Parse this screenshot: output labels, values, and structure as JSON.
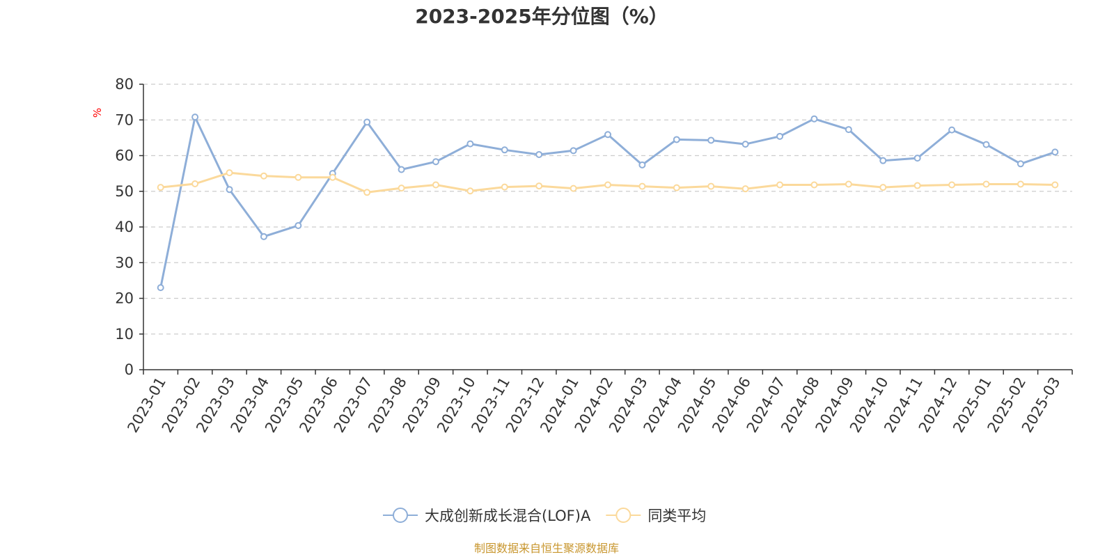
{
  "chart_data": {
    "type": "line",
    "title": "2023-2025年分位图（%）",
    "ylabel": "%",
    "ylim": [
      0,
      80
    ],
    "yticks": [
      0,
      10,
      20,
      30,
      40,
      50,
      60,
      70,
      80
    ],
    "grid": true,
    "legend_position": "bottom-center",
    "categories": [
      "2023-01",
      "2023-02",
      "2023-03",
      "2023-04",
      "2023-05",
      "2023-06",
      "2023-07",
      "2023-08",
      "2023-09",
      "2023-10",
      "2023-11",
      "2023-12",
      "2024-01",
      "2024-02",
      "2024-03",
      "2024-04",
      "2024-05",
      "2024-06",
      "2024-07",
      "2024-08",
      "2024-09",
      "2024-10",
      "2024-11",
      "2024-12",
      "2025-01",
      "2025-02",
      "2025-03"
    ],
    "series": [
      {
        "name": "大成创新成长混合(LOF)A",
        "color": "#8eaed8",
        "values": [
          23.0,
          70.8,
          50.5,
          37.3,
          40.4,
          55.0,
          69.4,
          56.1,
          58.3,
          63.3,
          61.6,
          60.3,
          61.4,
          65.9,
          57.4,
          64.5,
          64.3,
          63.2,
          65.4,
          70.3,
          67.3,
          58.6,
          59.3,
          67.2,
          63.1,
          57.7,
          61.0
        ]
      },
      {
        "name": "同类平均",
        "color": "#fbd99b",
        "values": [
          51.1,
          52.1,
          55.2,
          54.3,
          53.9,
          53.9,
          49.7,
          50.9,
          51.8,
          50.1,
          51.2,
          51.5,
          50.8,
          51.8,
          51.4,
          51.0,
          51.4,
          50.7,
          51.8,
          51.8,
          52.0,
          51.1,
          51.6,
          51.8,
          52.0,
          52.0,
          51.8
        ]
      }
    ],
    "source": "制图数据来自恒生聚源数据库"
  },
  "colors": {
    "axis": "#333333",
    "grid": "#cccccc",
    "unit": "#ff0000",
    "source": "#c8962e"
  }
}
